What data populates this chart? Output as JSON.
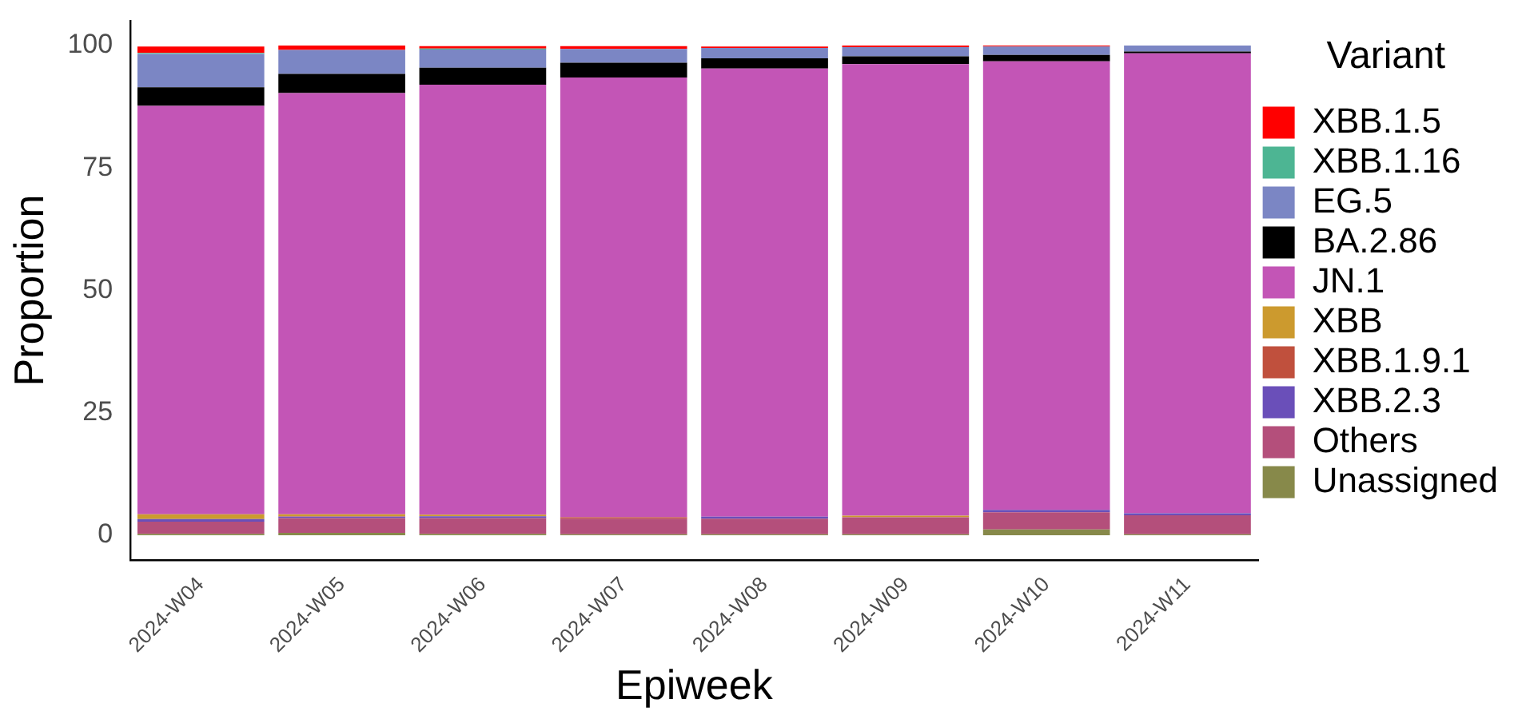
{
  "chart_data": {
    "type": "bar",
    "stacked": true,
    "xlabel": "Epiweek",
    "ylabel": "Proportion",
    "legend_title": "Variant",
    "legend": "right",
    "grid": false,
    "categories": [
      "2024-W04",
      "2024-W05",
      "2024-W06",
      "2024-W07",
      "2024-W08",
      "2024-W09",
      "2024-W10",
      "2024-W11"
    ],
    "ylim": [
      -5,
      105
    ],
    "yticks": [
      0,
      25,
      50,
      75,
      100
    ],
    "series": [
      {
        "name": "Unassigned",
        "color": "#87894a",
        "values": [
          0.3,
          0.5,
          0.3,
          0.2,
          0.2,
          0.2,
          1.2,
          0.2
        ]
      },
      {
        "name": "Others",
        "color": "#b44f7b",
        "values": [
          2.5,
          3.0,
          3.2,
          3.2,
          3.2,
          3.5,
          3.5,
          3.9
        ]
      },
      {
        "name": "XBB.2.3",
        "color": "#6a4fb9",
        "values": [
          0.5,
          0.3,
          0.4,
          null,
          0.4,
          0,
          0.5,
          0.4
        ]
      },
      {
        "name": "XBB.1.9.1",
        "color": "#c0503d",
        "values": [
          null,
          0.1,
          null,
          0.3,
          0,
          0,
          0,
          0
        ]
      },
      {
        "name": "XBB",
        "color": "#cc9a2e",
        "values": [
          1.0,
          0.4,
          0.3,
          0,
          null,
          0.3,
          0,
          0
        ]
      },
      {
        "name": "JN.1",
        "color": "#c355b6",
        "values": [
          83.4,
          86.0,
          87.8,
          89.8,
          91.5,
          92.2,
          91.6,
          93.9
        ]
      },
      {
        "name": "BA.2.86",
        "color": "#000000",
        "values": [
          3.8,
          3.9,
          3.5,
          3.0,
          2.1,
          1.6,
          1.3,
          0.4
        ]
      },
      {
        "name": "EG.5",
        "color": "#7b86c4",
        "values": [
          6.8,
          4.9,
          3.7,
          2.8,
          2.1,
          1.9,
          1.7,
          1.2
        ]
      },
      {
        "name": "XBB.1.16",
        "color": "#4db593",
        "values": [
          0.2,
          0,
          0.2,
          0,
          0,
          0,
          0,
          0
        ]
      },
      {
        "name": "XBB.1.5",
        "color": "#ff0000",
        "values": [
          1.3,
          0.9,
          0.5,
          0.6,
          0.3,
          0.3,
          0.2,
          0
        ]
      }
    ]
  }
}
